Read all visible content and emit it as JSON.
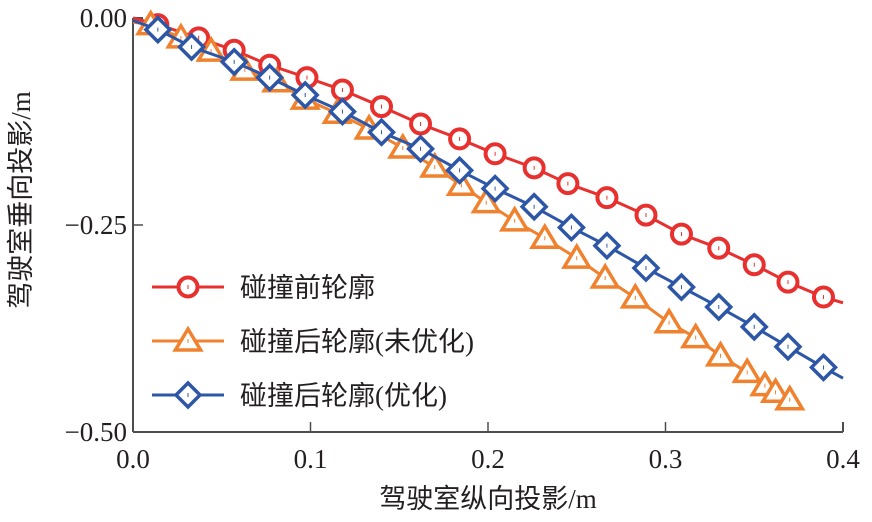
{
  "chart_data": {
    "type": "line",
    "title": "",
    "xlabel": "驾驶室纵向投影/m",
    "ylabel": "驾驶室垂向投影/m",
    "xlim": [
      0.0,
      0.4
    ],
    "ylim": [
      -0.5,
      0.0
    ],
    "xticks": [
      0.0,
      0.1,
      0.2,
      0.3,
      0.4
    ],
    "xtick_labels": [
      "0.0",
      "0.1",
      "0.2",
      "0.3",
      "0.4"
    ],
    "yticks": [
      0.0,
      -0.25,
      -0.5
    ],
    "ytick_labels": [
      "0.00",
      "−0.25",
      "−0.50"
    ],
    "grid": false,
    "legend_position": "bottom-left",
    "series": [
      {
        "name": "碰撞前轮廓",
        "marker": "circle",
        "color": "#e8312f",
        "points": [
          [
            0.0,
            0.0
          ],
          [
            0.014,
            -0.008
          ],
          [
            0.037,
            -0.024
          ],
          [
            0.057,
            -0.039
          ],
          [
            0.077,
            -0.057
          ],
          [
            0.098,
            -0.072
          ],
          [
            0.118,
            -0.087
          ],
          [
            0.14,
            -0.107
          ],
          [
            0.162,
            -0.128
          ],
          [
            0.184,
            -0.146
          ],
          [
            0.204,
            -0.164
          ],
          [
            0.226,
            -0.181
          ],
          [
            0.245,
            -0.2
          ],
          [
            0.267,
            -0.217
          ],
          [
            0.289,
            -0.238
          ],
          [
            0.309,
            -0.261
          ],
          [
            0.33,
            -0.278
          ],
          [
            0.35,
            -0.298
          ],
          [
            0.369,
            -0.319
          ],
          [
            0.389,
            -0.337
          ],
          [
            0.4,
            -0.344
          ]
        ]
      },
      {
        "name": "碰撞后轮廓(未优化)",
        "marker": "triangle",
        "color": "#f0822f",
        "points": [
          [
            0.0,
            -0.005
          ],
          [
            0.01,
            -0.008
          ],
          [
            0.027,
            -0.024
          ],
          [
            0.044,
            -0.04
          ],
          [
            0.063,
            -0.063
          ],
          [
            0.081,
            -0.077
          ],
          [
            0.097,
            -0.098
          ],
          [
            0.115,
            -0.115
          ],
          [
            0.133,
            -0.134
          ],
          [
            0.152,
            -0.157
          ],
          [
            0.17,
            -0.18
          ],
          [
            0.185,
            -0.202
          ],
          [
            0.199,
            -0.223
          ],
          [
            0.215,
            -0.245
          ],
          [
            0.232,
            -0.266
          ],
          [
            0.25,
            -0.29
          ],
          [
            0.266,
            -0.314
          ],
          [
            0.283,
            -0.338
          ],
          [
            0.302,
            -0.368
          ],
          [
            0.317,
            -0.386
          ],
          [
            0.331,
            -0.408
          ],
          [
            0.346,
            -0.428
          ],
          [
            0.356,
            -0.444
          ],
          [
            0.362,
            -0.452
          ],
          [
            0.37,
            -0.461
          ]
        ]
      },
      {
        "name": "碰撞后轮廓(优化)",
        "marker": "diamond",
        "color": "#2d57a6",
        "points": [
          [
            0.0,
            -0.003
          ],
          [
            0.014,
            -0.014
          ],
          [
            0.033,
            -0.035
          ],
          [
            0.057,
            -0.053
          ],
          [
            0.077,
            -0.072
          ],
          [
            0.097,
            -0.093
          ],
          [
            0.118,
            -0.113
          ],
          [
            0.14,
            -0.138
          ],
          [
            0.162,
            -0.158
          ],
          [
            0.184,
            -0.184
          ],
          [
            0.204,
            -0.206
          ],
          [
            0.226,
            -0.228
          ],
          [
            0.247,
            -0.253
          ],
          [
            0.267,
            -0.275
          ],
          [
            0.289,
            -0.302
          ],
          [
            0.309,
            -0.325
          ],
          [
            0.33,
            -0.349
          ],
          [
            0.35,
            -0.373
          ],
          [
            0.369,
            -0.397
          ],
          [
            0.389,
            -0.422
          ],
          [
            0.4,
            -0.435
          ]
        ]
      }
    ]
  }
}
